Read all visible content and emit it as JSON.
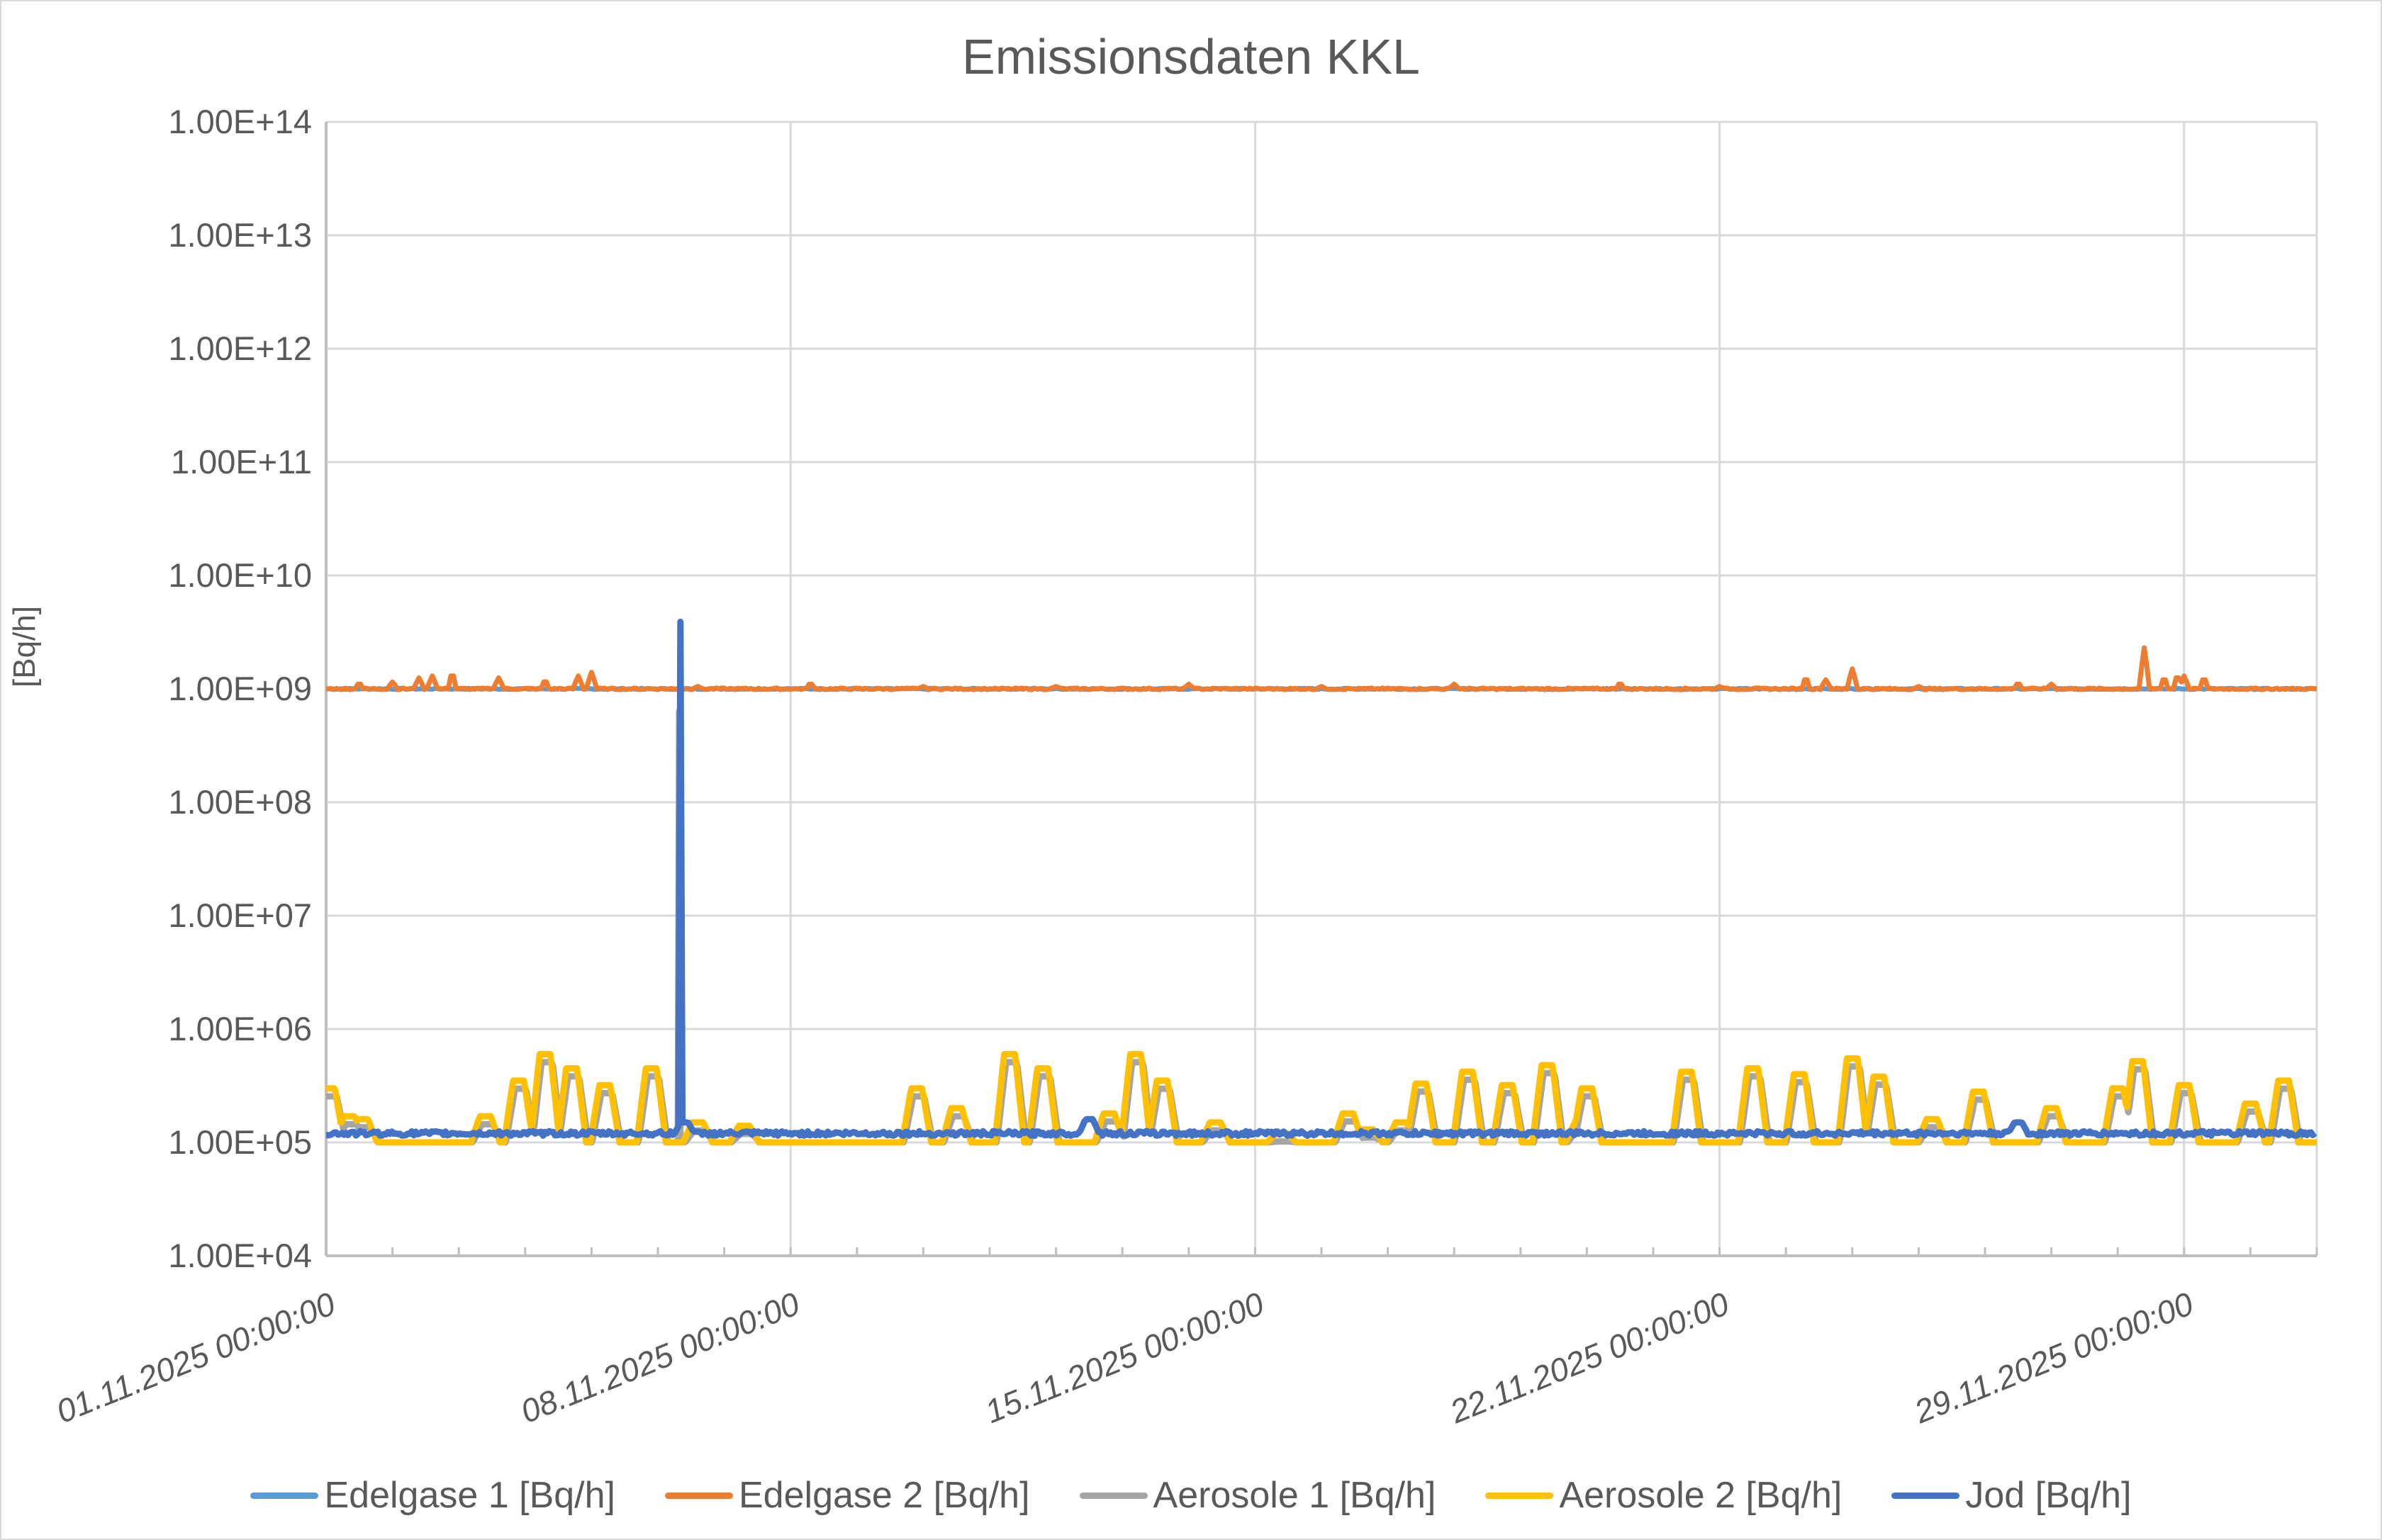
{
  "chart": {
    "title": "Emissionsdaten KKL",
    "y_axis_label": "[Bq/h]",
    "y_ticks": [
      "1.00E+14",
      "1.00E+13",
      "1.00E+12",
      "1.00E+11",
      "1.00E+10",
      "1.00E+09",
      "1.00E+08",
      "1.00E+07",
      "1.00E+06",
      "1.00E+05",
      "1.00E+04"
    ],
    "x_ticks": [
      "01.11.2025 00:00:00",
      "08.11.2025 00:00:00",
      "15.11.2025 00:00:00",
      "22.11.2025 00:00:00",
      "29.11.2025 00:00:00"
    ],
    "legend": [
      {
        "label": "Edelgase 1 [Bq/h]",
        "color": "#5B9BD5"
      },
      {
        "label": "Edelgase 2 [Bq/h]",
        "color": "#ED7D31"
      },
      {
        "label": "Aerosole 1 [Bq/h]",
        "color": "#A5A5A5"
      },
      {
        "label": "Aerosole 2 [Bq/h]",
        "color": "#FFC000"
      },
      {
        "label": "Jod [Bq/h]",
        "color": "#4472C4"
      }
    ]
  },
  "chart_data": {
    "type": "line",
    "title": "Emissionsdaten KKL",
    "xlabel": "",
    "ylabel": "[Bq/h]",
    "y_scale": "log",
    "ylim": [
      10000,
      100000000000000
    ],
    "x_range": [
      "01.11.2025 00:00:00",
      "01.12.2025 00:00:00"
    ],
    "x_tick_labels": [
      "01.11.2025 00:00:00",
      "08.11.2025 00:00:00",
      "15.11.2025 00:00:00",
      "22.11.2025 00:00:00",
      "29.11.2025 00:00:00"
    ],
    "grid": true,
    "legend_position": "bottom",
    "series": [
      {
        "name": "Edelgase 1 [Bq/h]",
        "color": "#5B9BD5",
        "baseline": 1000000000,
        "note": "hidden beneath Edelgase 2, ~1.0E+09 throughout"
      },
      {
        "name": "Edelgase 2 [Bq/h]",
        "color": "#ED7D31",
        "baseline": 1000000000,
        "peaks_day_value": [
          [
            0.5,
            1100000000.0
          ],
          [
            1.0,
            1150000000.0
          ],
          [
            1.4,
            1250000000.0
          ],
          [
            1.6,
            1300000000.0
          ],
          [
            1.9,
            1300000000.0
          ],
          [
            2.6,
            1250000000.0
          ],
          [
            3.3,
            1150000000.0
          ],
          [
            3.8,
            1300000000.0
          ],
          [
            4.0,
            1400000000.0
          ],
          [
            5.6,
            1050000000.0
          ],
          [
            7.3,
            1100000000.0
          ],
          [
            9.0,
            1050000000.0
          ],
          [
            11.0,
            1050000000.0
          ],
          [
            13.0,
            1100000000.0
          ],
          [
            15.0,
            1050000000.0
          ],
          [
            17.0,
            1100000000.0
          ],
          [
            19.5,
            1100000000.0
          ],
          [
            21.0,
            1050000000.0
          ],
          [
            22.3,
            1200000000.0
          ],
          [
            22.6,
            1200000000.0
          ],
          [
            23.0,
            1500000000.0
          ],
          [
            24.0,
            1050000000.0
          ],
          [
            25.5,
            1100000000.0
          ],
          [
            26.0,
            1100000000.0
          ],
          [
            27.4,
            2300000000.0
          ],
          [
            27.7,
            1200000000.0
          ],
          [
            27.9,
            1250000000.0
          ],
          [
            28.0,
            1300000000.0
          ],
          [
            28.3,
            1200000000.0
          ]
        ]
      },
      {
        "name": "Aerosole 1 [Bq/h]",
        "color": "#A5A5A5",
        "baseline": 100000,
        "spike": {
          "day": 5.32,
          "value": 640000000
        }
      },
      {
        "name": "Aerosole 2 [Bq/h]",
        "color": "#FFC000",
        "baseline": 100000,
        "peaks_day_value": [
          [
            0.05,
            300000
          ],
          [
            0.35,
            170000
          ],
          [
            0.55,
            160000
          ],
          [
            2.4,
            170000
          ],
          [
            2.9,
            350000
          ],
          [
            3.3,
            600000
          ],
          [
            3.7,
            450000
          ],
          [
            4.2,
            320000
          ],
          [
            4.9,
            450000
          ],
          [
            5.6,
            150000
          ],
          [
            6.3,
            140000
          ],
          [
            8.9,
            300000
          ],
          [
            9.5,
            200000
          ],
          [
            10.3,
            600000
          ],
          [
            10.8,
            450000
          ],
          [
            11.8,
            180000
          ],
          [
            12.2,
            600000
          ],
          [
            12.6,
            350000
          ],
          [
            13.4,
            150000
          ],
          [
            14.4,
            120000
          ],
          [
            15.4,
            180000
          ],
          [
            15.7,
            130000
          ],
          [
            16.2,
            150000
          ],
          [
            16.5,
            330000
          ],
          [
            17.2,
            420000
          ],
          [
            17.8,
            320000
          ],
          [
            18.4,
            480000
          ],
          [
            18.9,
            150000
          ],
          [
            19.0,
            300000
          ],
          [
            20.5,
            420000
          ],
          [
            21.5,
            450000
          ],
          [
            22.2,
            400000
          ],
          [
            23.0,
            550000
          ],
          [
            23.4,
            380000
          ],
          [
            24.2,
            160000
          ],
          [
            24.9,
            280000
          ],
          [
            26.0,
            200000
          ],
          [
            27.0,
            300000
          ],
          [
            27.3,
            520000
          ],
          [
            28.0,
            320000
          ],
          [
            29.0,
            220000
          ],
          [
            29.5,
            350000
          ]
        ]
      },
      {
        "name": "Jod [Bq/h]",
        "color": "#4472C4",
        "baseline": 120000,
        "spike": {
          "day": 5.34,
          "value": 3900000000
        },
        "peaks_day_value": [
          [
            5.4,
            150000
          ],
          [
            11.5,
            160000
          ],
          [
            25.5,
            150000
          ]
        ]
      }
    ]
  }
}
